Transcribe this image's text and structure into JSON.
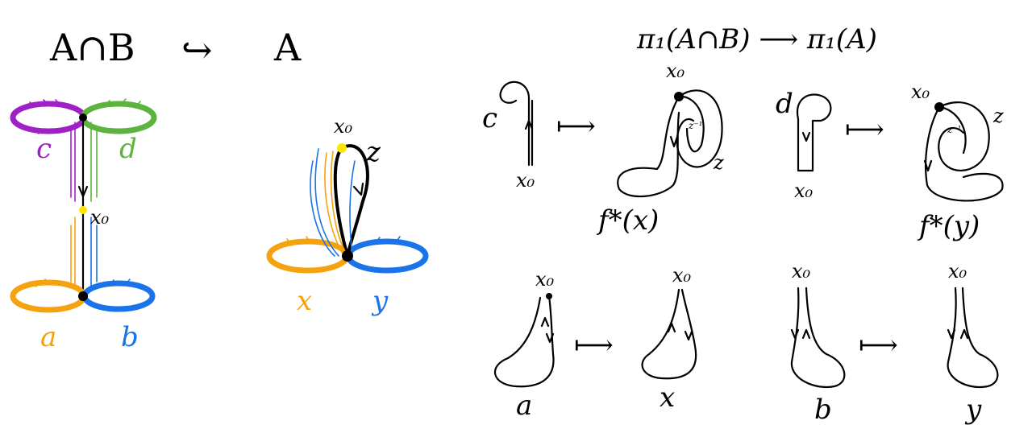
{
  "labels": {
    "title_left": "A∩B",
    "title_arrow": "↪",
    "title_right": "A",
    "title_pi": "π₁(A∩B) ⟶ π₁(A)",
    "loop_c": "c",
    "loop_d": "d",
    "loop_a": "a",
    "loop_b": "b",
    "basepoint_left": "x₀",
    "basepoint_mid": "x₀",
    "loop_z": "z",
    "loop_x": "x",
    "loop_y": "y",
    "fx_label": "f*(x)",
    "fy_label": "f*(y)",
    "p1_c": "c",
    "p1_x0": "x₀",
    "p2_x0": "x₀",
    "p2_z": "z",
    "p2_z_in": "z⁻¹",
    "p3_d": "d",
    "p3_x0": "x₀",
    "p4_x0": "x₀",
    "p4_z": "z",
    "p4_z_in": "z⁻¹",
    "p5_x0": "x₀",
    "p5_a": "a",
    "p6_x0": "x₀",
    "p6_x": "x",
    "p7_x0": "x₀",
    "p7_b": "b",
    "p8_x0": "x₀",
    "p8_y": "y",
    "mapsto": "⟼"
  },
  "colors": {
    "purple": "#a020c8",
    "green": "#5cb33e",
    "orange": "#f5a20f",
    "blue": "#1a73e8",
    "yellow": "#ffe600",
    "black": "#000000"
  }
}
